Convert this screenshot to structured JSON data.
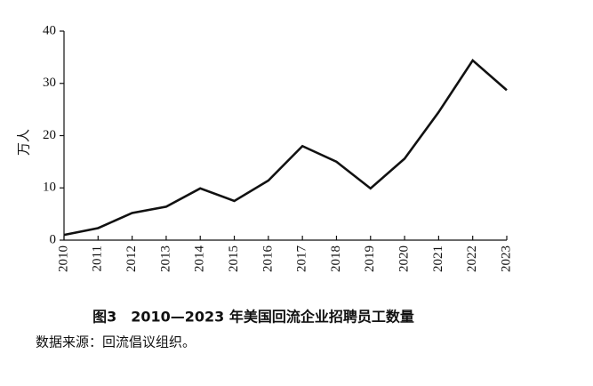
{
  "chart_data": {
    "type": "line",
    "title": "图3　2010—2023 年美国回流企业招聘员工数量",
    "source": "数据来源：回流倡议组织。",
    "y_label": "万人",
    "categories": [
      "2010",
      "2011",
      "2012",
      "2013",
      "2014",
      "2015",
      "2016",
      "2017",
      "2018",
      "2019",
      "2020",
      "2021",
      "2022",
      "2023"
    ],
    "values": [
      1.0,
      2.3,
      5.2,
      6.4,
      9.9,
      7.5,
      11.4,
      18.0,
      15.0,
      9.9,
      15.6,
      24.5,
      34.4,
      28.7
    ],
    "color": "#111111",
    "ylim": [
      0,
      40
    ],
    "yticks": [
      0,
      10,
      20,
      30,
      40
    ],
    "grid": false
  }
}
